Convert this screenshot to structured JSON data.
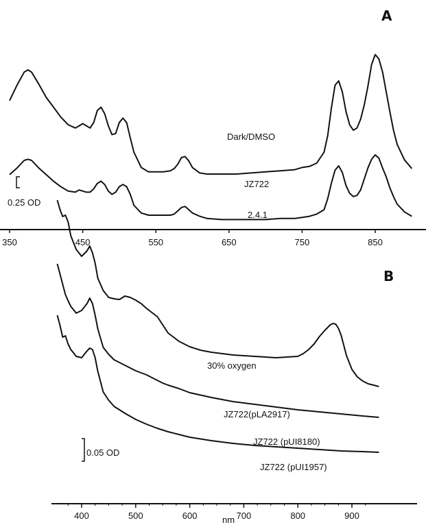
{
  "chart_data": [
    {
      "type": "line",
      "panel": "A",
      "annotation": "Dark/DMSO",
      "xlim": [
        350,
        900
      ],
      "x_ticks": [
        350,
        450,
        550,
        650,
        750,
        850
      ],
      "y_units": "OD",
      "scale_bar": {
        "value": 0.25,
        "label": "0.25 OD"
      },
      "series": [
        {
          "name": "JZ722",
          "x": [
            350,
            360,
            370,
            375,
            380,
            390,
            400,
            410,
            420,
            430,
            440,
            445,
            450,
            455,
            460,
            465,
            470,
            475,
            480,
            485,
            490,
            495,
            500,
            505,
            510,
            515,
            520,
            530,
            540,
            550,
            560,
            570,
            575,
            580,
            585,
            590,
            595,
            600,
            610,
            620,
            640,
            660,
            680,
            700,
            720,
            740,
            750,
            760,
            770,
            780,
            785,
            790,
            795,
            800,
            805,
            810,
            815,
            820,
            825,
            830,
            835,
            840,
            845,
            850,
            855,
            860,
            865,
            870,
            875,
            880,
            890,
            900
          ],
          "y": [
            0.72,
            0.86,
            0.98,
            1.0,
            0.98,
            0.87,
            0.75,
            0.66,
            0.57,
            0.5,
            0.47,
            0.49,
            0.51,
            0.49,
            0.47,
            0.52,
            0.63,
            0.66,
            0.6,
            0.49,
            0.41,
            0.42,
            0.52,
            0.56,
            0.52,
            0.38,
            0.25,
            0.11,
            0.07,
            0.07,
            0.07,
            0.08,
            0.1,
            0.14,
            0.2,
            0.21,
            0.17,
            0.11,
            0.06,
            0.05,
            0.05,
            0.05,
            0.06,
            0.07,
            0.08,
            0.09,
            0.11,
            0.12,
            0.15,
            0.25,
            0.4,
            0.65,
            0.86,
            0.9,
            0.8,
            0.62,
            0.5,
            0.45,
            0.47,
            0.55,
            0.68,
            0.85,
            1.05,
            1.14,
            1.1,
            0.98,
            0.8,
            0.62,
            0.45,
            0.32,
            0.18,
            0.1
          ]
        },
        {
          "name": "2.4.1",
          "x": [
            350,
            360,
            370,
            375,
            380,
            390,
            400,
            410,
            420,
            430,
            440,
            445,
            450,
            455,
            460,
            465,
            470,
            475,
            480,
            485,
            490,
            495,
            500,
            505,
            510,
            515,
            520,
            530,
            540,
            550,
            560,
            570,
            575,
            580,
            585,
            590,
            595,
            600,
            610,
            620,
            640,
            660,
            680,
            700,
            720,
            740,
            750,
            760,
            770,
            780,
            785,
            790,
            795,
            800,
            805,
            810,
            815,
            820,
            825,
            830,
            835,
            840,
            845,
            850,
            855,
            860,
            865,
            870,
            875,
            880,
            890,
            900
          ],
          "y": [
            0.42,
            0.48,
            0.55,
            0.56,
            0.55,
            0.48,
            0.42,
            0.36,
            0.31,
            0.27,
            0.26,
            0.28,
            0.27,
            0.26,
            0.26,
            0.29,
            0.34,
            0.36,
            0.33,
            0.27,
            0.24,
            0.26,
            0.31,
            0.33,
            0.31,
            0.24,
            0.14,
            0.07,
            0.05,
            0.05,
            0.05,
            0.05,
            0.06,
            0.09,
            0.12,
            0.13,
            0.1,
            0.07,
            0.04,
            0.02,
            0.01,
            0.01,
            0.01,
            0.01,
            0.02,
            0.02,
            0.03,
            0.04,
            0.06,
            0.1,
            0.2,
            0.34,
            0.46,
            0.5,
            0.44,
            0.32,
            0.25,
            0.22,
            0.23,
            0.28,
            0.38,
            0.48,
            0.56,
            0.6,
            0.57,
            0.48,
            0.4,
            0.3,
            0.22,
            0.15,
            0.08,
            0.04
          ]
        }
      ]
    },
    {
      "type": "line",
      "panel": "B",
      "annotation": "30% oxygen",
      "xlabel": "nm",
      "xlim": [
        350,
        950
      ],
      "x_ticks": [
        400,
        500,
        600,
        700,
        800,
        900
      ],
      "y_units": "OD",
      "scale_bar": {
        "value": 0.05,
        "label": "0.05 OD"
      },
      "series": [
        {
          "name": "JZ722(pLA2917)",
          "x": [
            355,
            360,
            365,
            370,
            375,
            380,
            390,
            400,
            410,
            415,
            420,
            425,
            430,
            440,
            450,
            460,
            470,
            480,
            490,
            500,
            510,
            520,
            530,
            540,
            550,
            560,
            570,
            580,
            600,
            620,
            640,
            660,
            680,
            700,
            720,
            740,
            760,
            780,
            800,
            810,
            820,
            830,
            840,
            850,
            860,
            865,
            870,
            875,
            880,
            885,
            890,
            900,
            910,
            920,
            930,
            940,
            950
          ],
          "y": [
            0.292,
            0.278,
            0.268,
            0.27,
            0.26,
            0.24,
            0.22,
            0.21,
            0.218,
            0.225,
            0.215,
            0.2,
            0.178,
            0.16,
            0.15,
            0.148,
            0.147,
            0.152,
            0.15,
            0.146,
            0.141,
            0.134,
            0.128,
            0.122,
            0.11,
            0.098,
            0.092,
            0.086,
            0.078,
            0.073,
            0.07,
            0.068,
            0.066,
            0.065,
            0.064,
            0.063,
            0.062,
            0.063,
            0.064,
            0.068,
            0.074,
            0.082,
            0.093,
            0.102,
            0.11,
            0.112,
            0.111,
            0.105,
            0.095,
            0.08,
            0.065,
            0.045,
            0.034,
            0.028,
            0.024,
            0.022,
            0.02
          ]
        },
        {
          "name": "JZ722 (pUI8180)",
          "x": [
            355,
            360,
            365,
            370,
            375,
            380,
            390,
            400,
            410,
            415,
            420,
            425,
            430,
            440,
            450,
            460,
            470,
            480,
            500,
            520,
            540,
            550,
            560,
            580,
            600,
            640,
            680,
            720,
            760,
            800,
            840,
            880,
            920,
            950
          ],
          "y": [
            0.24,
            0.225,
            0.21,
            0.195,
            0.186,
            0.178,
            0.168,
            0.172,
            0.182,
            0.19,
            0.182,
            0.165,
            0.145,
            0.118,
            0.108,
            0.1,
            0.096,
            0.092,
            0.084,
            0.078,
            0.07,
            0.066,
            0.063,
            0.058,
            0.052,
            0.045,
            0.039,
            0.035,
            0.031,
            0.027,
            0.024,
            0.021,
            0.018,
            0.016
          ]
        },
        {
          "name": "JZ722 (pUI1957)",
          "x": [
            355,
            360,
            365,
            370,
            375,
            380,
            390,
            400,
            410,
            415,
            420,
            425,
            430,
            440,
            450,
            460,
            480,
            500,
            520,
            540,
            560,
            580,
            600,
            640,
            680,
            720,
            760,
            800,
            840,
            880,
            920,
            950
          ],
          "y": [
            0.2,
            0.185,
            0.168,
            0.17,
            0.158,
            0.15,
            0.14,
            0.138,
            0.148,
            0.152,
            0.15,
            0.138,
            0.118,
            0.088,
            0.076,
            0.067,
            0.057,
            0.048,
            0.041,
            0.035,
            0.03,
            0.026,
            0.022,
            0.017,
            0.013,
            0.01,
            0.008,
            0.006,
            0.004,
            0.002,
            0.001,
            0.0
          ]
        }
      ]
    }
  ]
}
